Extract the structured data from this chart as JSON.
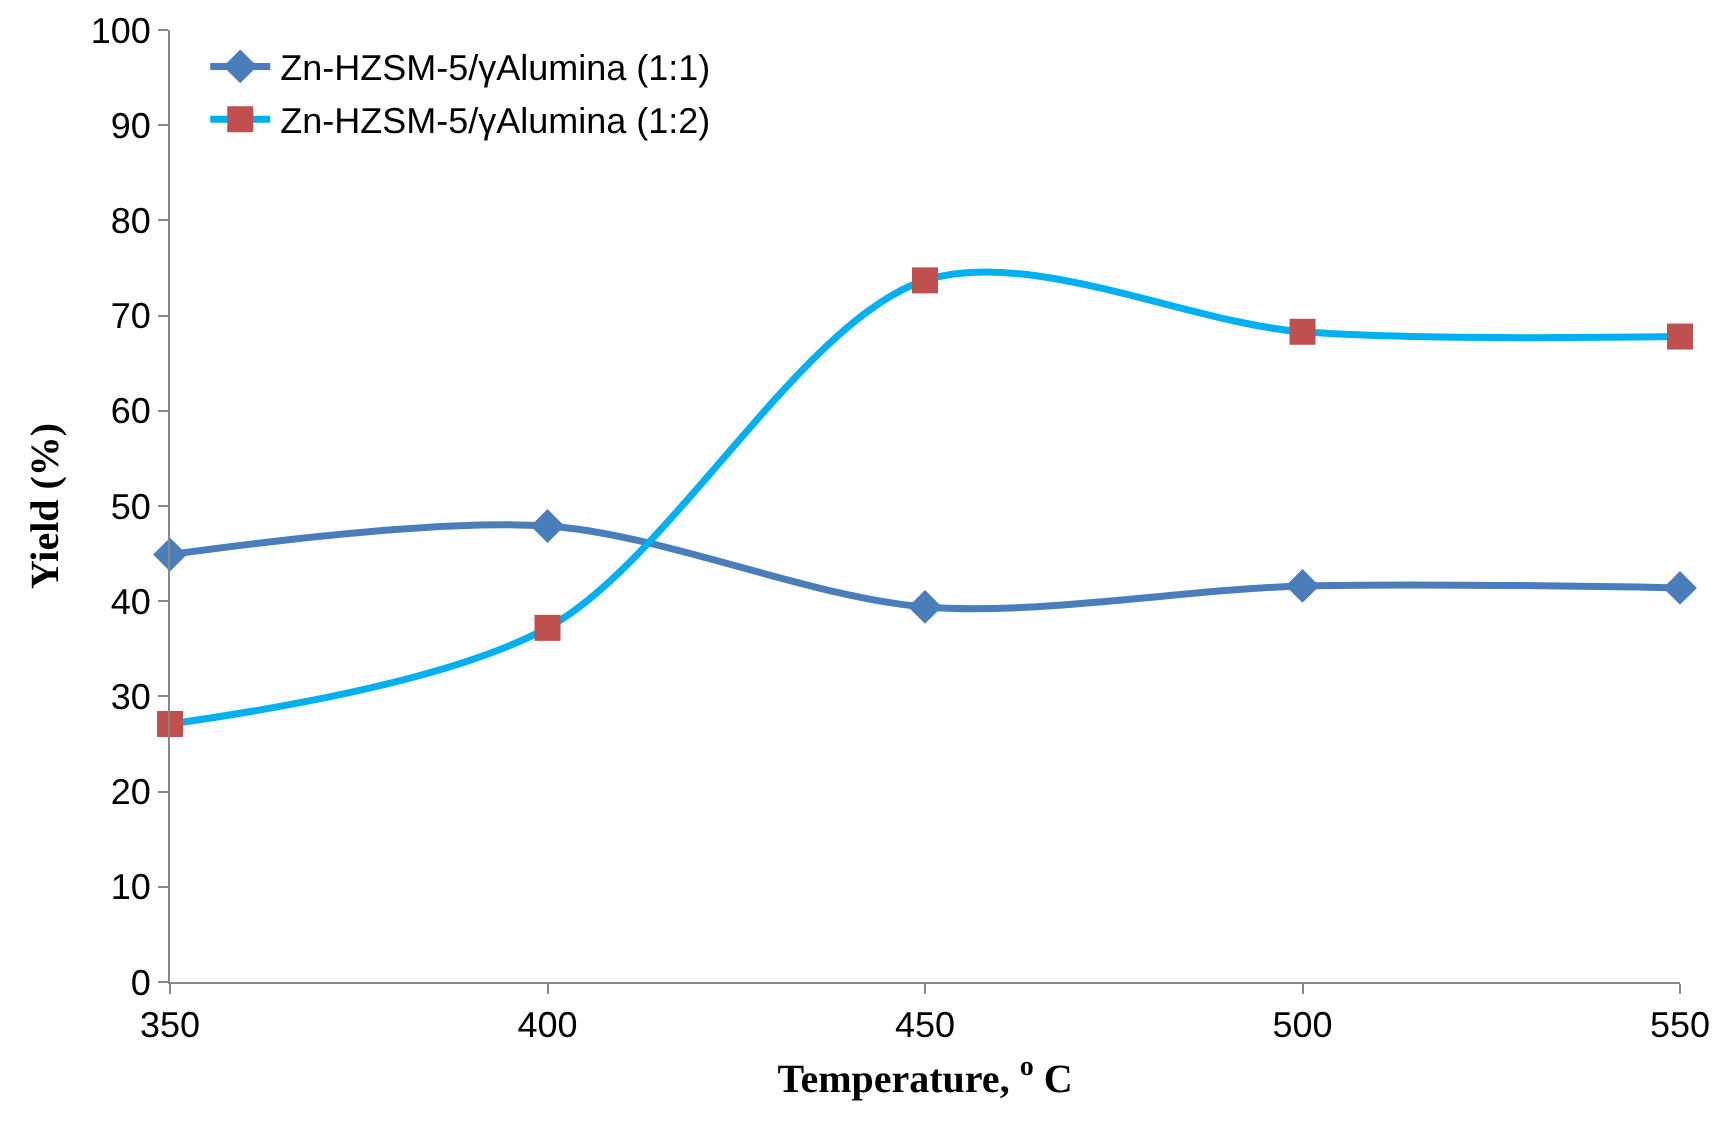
{
  "chart_data": {
    "type": "line",
    "xlabel": "Temperature, $^{o}$ C",
    "ylabel": "Yield (%)",
    "x": [
      350,
      400,
      450,
      500,
      550
    ],
    "series": [
      {
        "name": "Zn-HZSM-5/γAlumina (1:1)",
        "color": "#4a7ebb",
        "marker": "diamond",
        "values": [
          44.9,
          47.9,
          39.4,
          41.6,
          41.4
        ]
      },
      {
        "name": "Zn-HZSM-5/γAlumina (1:2)",
        "color": "#00b0f0",
        "colors": [
          "#c0504d",
          "#c0504d",
          "#c0504d",
          "#c0504d",
          "#c0504d"
        ],
        "marker": "square",
        "values": [
          27.1,
          37.2,
          73.7,
          68.3,
          67.8
        ]
      }
    ],
    "xlim": [
      350,
      550
    ],
    "xticks": [
      350,
      400,
      450,
      500,
      550
    ],
    "ylim": [
      0,
      100
    ],
    "yticks": [
      0,
      10,
      20,
      30,
      40,
      50,
      60,
      70,
      80,
      90,
      100
    ],
    "grid": false,
    "legend": "top left",
    "line_style": "solid"
  }
}
